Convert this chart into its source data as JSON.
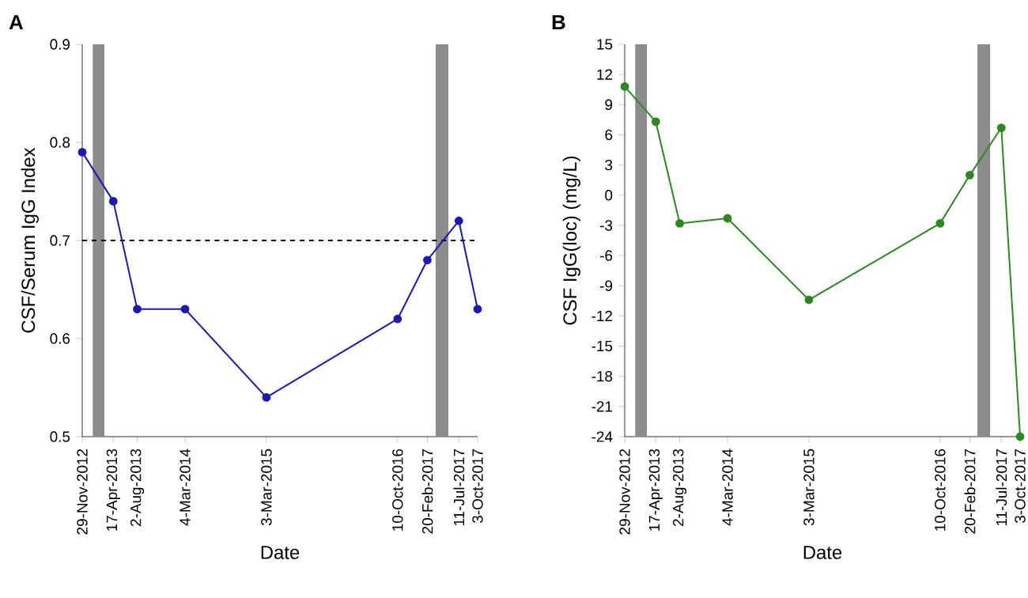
{
  "chart_data": [
    {
      "type": "line",
      "title": "A",
      "xlabel": "Date",
      "ylabel": "CSF/Serum IgG Index",
      "x": [
        "2012-11-29",
        "2013-04-17",
        "2013-08-02",
        "2014-03-04",
        "2015-03-03",
        "2016-10-10",
        "2017-02-20",
        "2017-07-11",
        "2017-10-03"
      ],
      "series": [
        {
          "color": "#1a1ab4",
          "values": [
            0.79,
            0.74,
            0.63,
            0.63,
            0.54,
            0.62,
            0.68,
            0.72,
            0.63
          ]
        }
      ],
      "xlim": [
        "2012-11-29",
        "2017-10-03"
      ],
      "xticks": [
        {
          "value": "2012-11-29",
          "label": "29-Nov-2012"
        },
        {
          "value": "2013-04-17",
          "label": "17-Apr-2013"
        },
        {
          "value": "2013-08-02",
          "label": "2-Aug-2013"
        },
        {
          "value": "2014-03-04",
          "label": "4-Mar-2014"
        },
        {
          "value": "2015-03-03",
          "label": "3-Mar-2015"
        },
        {
          "value": "2016-10-10",
          "label": "10-Oct-2016"
        },
        {
          "value": "2017-02-20",
          "label": "20-Feb-2017"
        },
        {
          "value": "2017-07-11",
          "label": "11-Jul-2017"
        },
        {
          "value": "2017-10-03",
          "label": "3-Oct-2017"
        }
      ],
      "ylim": [
        0.5,
        0.9
      ],
      "yticks": [
        0.5,
        0.6,
        0.7,
        0.8,
        0.9
      ],
      "ref_lines": [
        {
          "axis": "y",
          "value": 0.7,
          "color": "#000000",
          "line_style": "dashed"
        }
      ],
      "bands": [
        {
          "axis": "x",
          "from": "2013-01-15",
          "to": "2013-03-08",
          "color": "#8c8c8c"
        },
        {
          "axis": "x",
          "from": "2017-03-29",
          "to": "2017-05-25",
          "color": "#8c8c8c"
        }
      ],
      "marker": "circle",
      "line_style": "solid"
    },
    {
      "type": "line",
      "title": "B",
      "xlabel": "Date",
      "ylabel": "CSF IgG(loc) (mg/L)",
      "x": [
        "2012-11-29",
        "2013-04-17",
        "2013-08-02",
        "2014-03-04",
        "2015-03-03",
        "2016-10-10",
        "2017-02-20",
        "2017-07-11",
        "2017-10-03"
      ],
      "series": [
        {
          "color": "#2a8a1e",
          "values": [
            10.8,
            7.3,
            -2.8,
            -2.3,
            -10.4,
            -2.8,
            2.0,
            6.7,
            -24
          ]
        }
      ],
      "xlim": [
        "2012-11-29",
        "2017-10-03"
      ],
      "xticks": [
        {
          "value": "2012-11-29",
          "label": "29-Nov-2012"
        },
        {
          "value": "2013-04-17",
          "label": "17-Apr-2013"
        },
        {
          "value": "2013-08-02",
          "label": "2-Aug-2013"
        },
        {
          "value": "2014-03-04",
          "label": "4-Mar-2014"
        },
        {
          "value": "2015-03-03",
          "label": "3-Mar-2015"
        },
        {
          "value": "2016-10-10",
          "label": "10-Oct-2016"
        },
        {
          "value": "2017-02-20",
          "label": "20-Feb-2017"
        },
        {
          "value": "2017-07-11",
          "label": "11-Jul-2017"
        },
        {
          "value": "2017-10-03",
          "label": "3-Oct-2017"
        }
      ],
      "ylim": [
        -24,
        15
      ],
      "yticks": [
        -24,
        -21,
        -18,
        -15,
        -12,
        -9,
        -6,
        -3,
        0,
        3,
        6,
        9,
        12,
        15
      ],
      "bands": [
        {
          "axis": "x",
          "from": "2013-01-15",
          "to": "2013-03-08",
          "color": "#8c8c8c"
        },
        {
          "axis": "x",
          "from": "2017-03-26",
          "to": "2017-05-22",
          "color": "#8c8c8c"
        }
      ],
      "marker": "circle",
      "line_style": "solid"
    }
  ]
}
